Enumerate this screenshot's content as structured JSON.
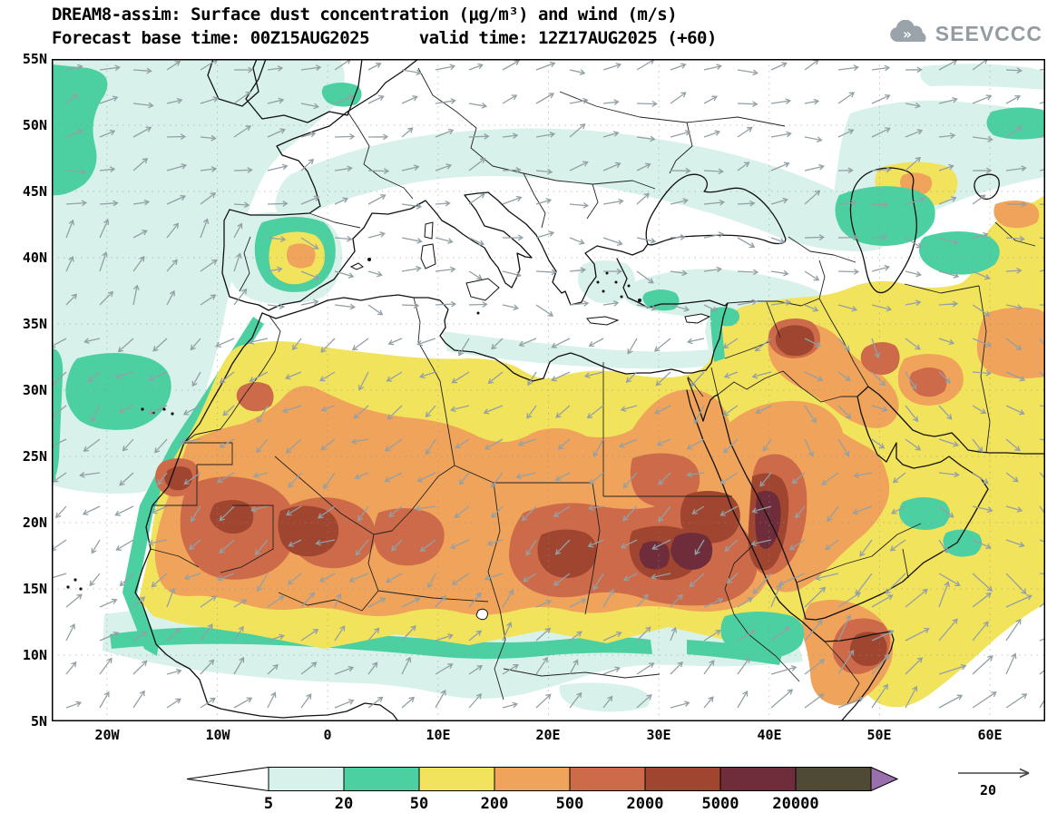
{
  "header": {
    "line1": "DREAM8-assim: Surface dust concentration (μg/m³) and wind (m/s)",
    "line2": "Forecast base time: 00Z15AUG2025     valid time: 12Z17AUG2025 (+60)",
    "logo_text": "SEEVCCC",
    "logo_chevrons": "»",
    "logo_color": "#939ca2"
  },
  "axes": {
    "lat_labels": [
      "55N",
      "50N",
      "45N",
      "40N",
      "35N",
      "30N",
      "25N",
      "20N",
      "15N",
      "10N",
      "5N"
    ],
    "lon_labels": [
      "20W",
      "10W",
      "0",
      "10E",
      "20E",
      "30E",
      "40E",
      "50E",
      "60E"
    ]
  },
  "map": {
    "wind_arrow_color": "#93a0a5",
    "grid_color": "#8f8f8f",
    "coast_color": "#111111",
    "background": "#ffffff"
  },
  "colorbar": {
    "tick_labels": [
      "5",
      "20",
      "50",
      "200",
      "500",
      "2000",
      "5000",
      "20000"
    ],
    "segment_colors": [
      "#d8f1ea",
      "#4cd0a2",
      "#f2e35c",
      "#f0a35a",
      "#cd6a4a",
      "#a0452f",
      "#6f2d3b",
      "#4e4a35"
    ],
    "left_arrow_color": "#ffffff",
    "right_arrow_color": "#9a6fad"
  },
  "wind_reference": {
    "label": "20"
  },
  "chart_data": {
    "type": "heatmap",
    "model": "DREAM8-assim",
    "variable": "Surface dust concentration",
    "units": "μg/m³",
    "wind_units": "m/s",
    "title": "DREAM8-assim: Surface dust concentration (μg/m³) and wind (m/s)",
    "forecast_base_time": "00Z15AUG2025",
    "valid_time": "12Z17AUG2025",
    "forecast_hour": "+60",
    "contour_levels": [
      5,
      20,
      50,
      200,
      500,
      2000,
      5000,
      20000
    ],
    "level_colors": [
      "#ffffff",
      "#d8f1ea",
      "#4cd0a2",
      "#f2e35c",
      "#f0a35a",
      "#cd6a4a",
      "#a0452f",
      "#6f2d3b",
      "#4e4a35",
      "#9a6fad"
    ],
    "lon_range_deg": [
      -25,
      65
    ],
    "lat_range_deg": [
      5,
      55
    ],
    "lat_ticks": [
      "55N",
      "50N",
      "45N",
      "40N",
      "35N",
      "30N",
      "25N",
      "20N",
      "15N",
      "10N",
      "5N"
    ],
    "lon_ticks": [
      "20W",
      "10W",
      "0",
      "10E",
      "20E",
      "30E",
      "40E",
      "50E",
      "60E"
    ],
    "wind_reference_ms": 20,
    "legend_position": "bottom"
  }
}
